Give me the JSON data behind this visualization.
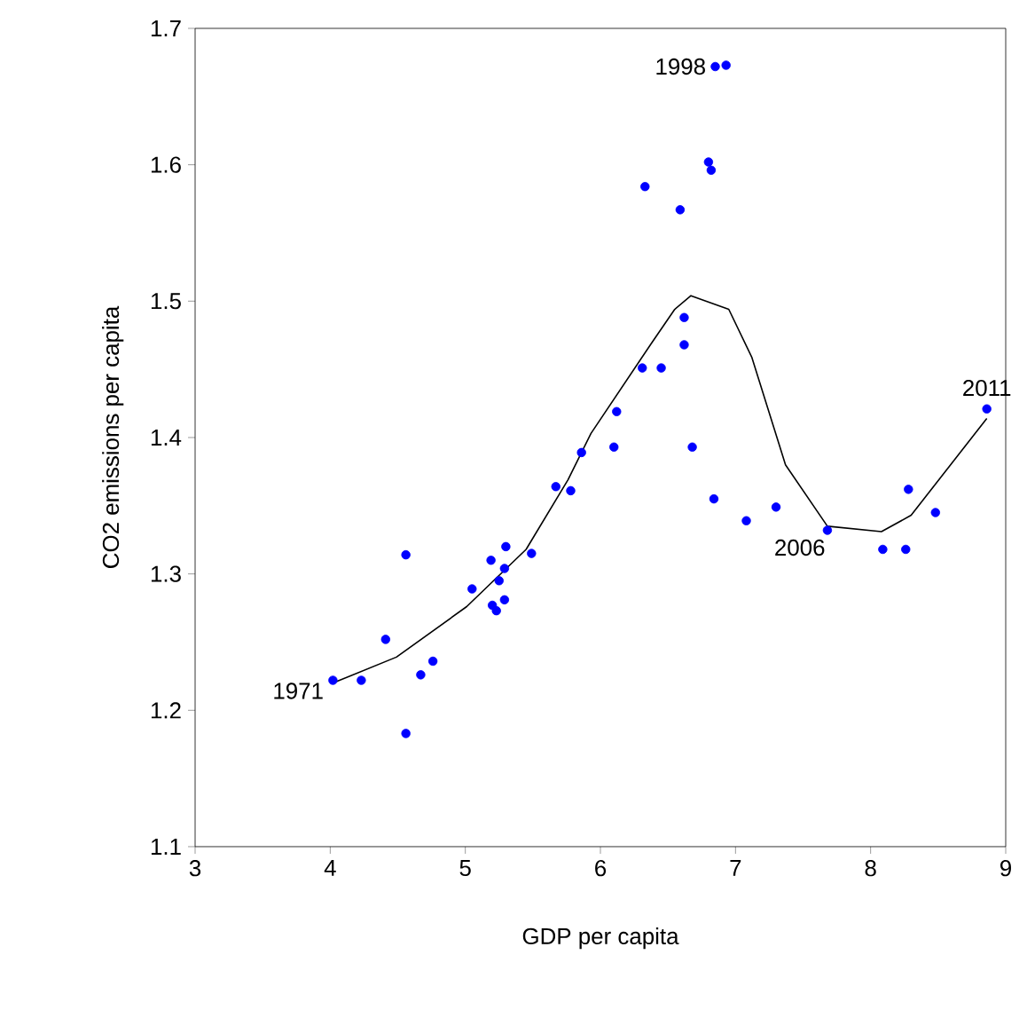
{
  "chart_data": {
    "type": "scatter",
    "xlabel": "GDP per capita",
    "ylabel": "CO2 emissions per capita",
    "xlim": [
      3,
      9
    ],
    "xticks": [
      3,
      4,
      5,
      6,
      7,
      8,
      9
    ],
    "ylim": [
      1.1,
      1.7
    ],
    "yticks": [
      1.1,
      1.2,
      1.3,
      1.4,
      1.5,
      1.6,
      1.7
    ],
    "grid": false,
    "series": [
      {
        "marker": "circle",
        "color": "#0000ff",
        "x": [
          4.02,
          4.23,
          4.41,
          4.56,
          4.56,
          4.67,
          4.76,
          5.05,
          5.19,
          5.3,
          5.29,
          5.25,
          5.2,
          5.23,
          5.29,
          5.49,
          5.67,
          5.78,
          5.86,
          6.1,
          6.12,
          6.31,
          6.45,
          6.62,
          6.62,
          6.68,
          6.33,
          6.59,
          6.8,
          6.82,
          6.85,
          6.93,
          6.84,
          7.08,
          7.3,
          7.68,
          8.09,
          8.26,
          8.28,
          8.48,
          8.86
        ],
        "values": [
          1.222,
          1.222,
          1.252,
          1.314,
          1.183,
          1.226,
          1.236,
          1.289,
          1.31,
          1.32,
          1.304,
          1.295,
          1.277,
          1.273,
          1.281,
          1.315,
          1.364,
          1.361,
          1.389,
          1.393,
          1.419,
          1.451,
          1.451,
          1.468,
          1.488,
          1.393,
          1.584,
          1.567,
          1.602,
          1.596,
          1.672,
          1.673,
          1.355,
          1.339,
          1.349,
          1.332,
          1.318,
          1.318,
          1.362,
          1.345,
          1.421
        ]
      },
      {
        "type": "line",
        "marker": "none",
        "line_style": "solid",
        "color": "#000000",
        "x": [
          4.02,
          4.49,
          5.01,
          5.45,
          5.76,
          5.93,
          6.37,
          6.55,
          6.67,
          6.95,
          7.12,
          7.37,
          7.68,
          8.08,
          8.3,
          8.86
        ],
        "values": [
          1.22,
          1.239,
          1.276,
          1.318,
          1.369,
          1.403,
          1.468,
          1.494,
          1.504,
          1.494,
          1.459,
          1.38,
          1.335,
          1.331,
          1.343,
          1.414
        ]
      }
    ],
    "annotations": [
      {
        "text": "1971",
        "x": 4.02,
        "y": 1.222
      },
      {
        "text": "1998",
        "x": 6.85,
        "y": 1.672
      },
      {
        "text": "2006",
        "x": 7.68,
        "y": 1.332
      },
      {
        "text": "2011",
        "x": 8.86,
        "y": 1.421
      }
    ]
  }
}
